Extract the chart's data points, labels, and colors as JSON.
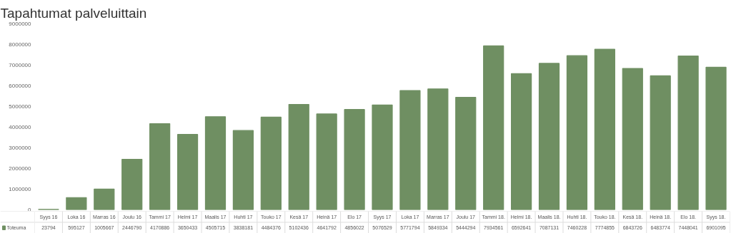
{
  "chart_data": {
    "type": "bar",
    "title": "Tapahtumat palveluittain",
    "categories": [
      "Syys 16",
      "Loka 16",
      "Marras 16",
      "Joulu 16",
      "Tammi 17",
      "Helmi 17",
      "Maalis 17",
      "Huhti 17",
      "Touko 17",
      "Kesä 17",
      "Heinä 17",
      "Elo 17",
      "Syys 17",
      "Loka 17",
      "Marras 17",
      "Joulu 17",
      "Tammi 18.",
      "Helmi 18.",
      "Maalis 18.",
      "Huhti 18.",
      "Touko 18.",
      "Kesä 18.",
      "Heinä 18.",
      "Elo 18.",
      "Syys 18."
    ],
    "series": [
      {
        "name": "Toteuma",
        "color": "#6f8f62",
        "values": [
          23794,
          595127,
          1005667,
          2446790,
          4170886,
          3650433,
          4505715,
          3838181,
          4484376,
          5102436,
          4641792,
          4856022,
          5076529,
          5771794,
          5849334,
          5444294,
          7934561,
          6592641,
          7087131,
          7460228,
          7774855,
          6843726,
          6483774,
          7448041,
          6901095
        ]
      }
    ],
    "ylim": [
      0,
      9000000
    ],
    "yticks": [
      0,
      1000000,
      2000000,
      3000000,
      4000000,
      5000000,
      6000000,
      7000000,
      8000000,
      9000000
    ],
    "grid": false,
    "data_labels": true,
    "legend": "bottom"
  }
}
